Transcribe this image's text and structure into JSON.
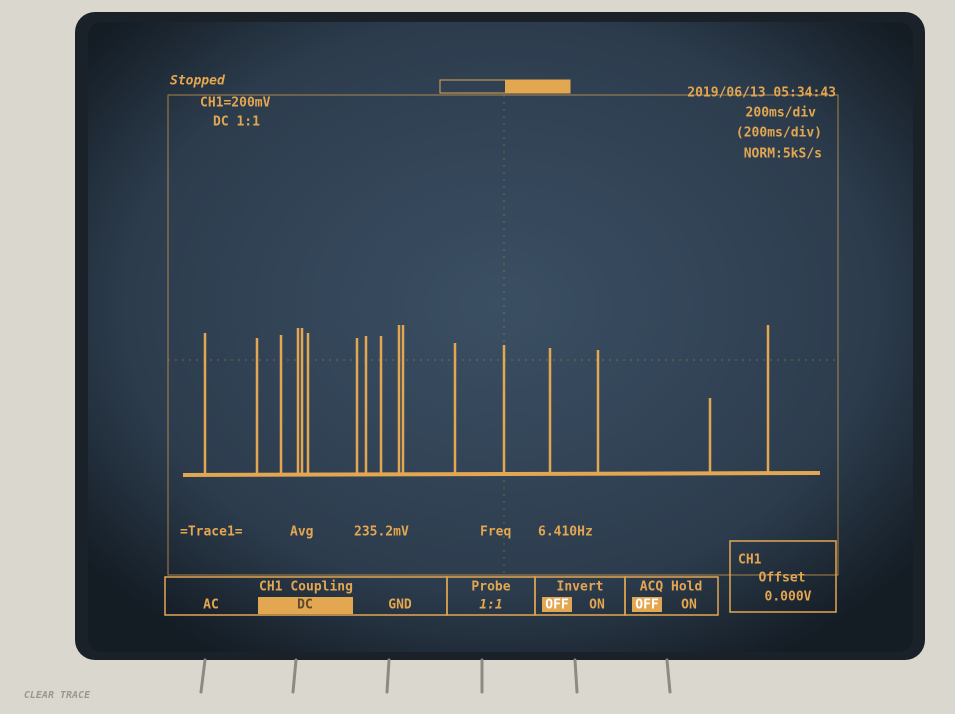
{
  "header": {
    "status": "Stopped",
    "channel": "CH1=200mV",
    "coupling": "DC 1:1",
    "timestamp": "2019/06/13 05:34:43",
    "timebase": "200ms/div",
    "timebase_window": "(200ms/div)",
    "sample_rate": "NORM:5kS/s"
  },
  "measurement": {
    "trace": "=Trace1=",
    "avg_label": "Avg",
    "avg_value": "235.2mV",
    "freq_label": "Freq",
    "freq_value": "6.410Hz"
  },
  "menu": {
    "coupling": {
      "title": "CH1 Coupling",
      "options": [
        "AC",
        "DC",
        "GND"
      ]
    },
    "probe": {
      "title": "Probe",
      "value": "1:1"
    },
    "invert": {
      "title": "Invert",
      "options": [
        "OFF",
        "ON"
      ]
    },
    "acq_hold": {
      "title": "ACQ Hold",
      "options": [
        "OFF",
        "ON"
      ]
    },
    "offset": {
      "channel": "CH1",
      "title": "Offset",
      "value": "0.000V"
    }
  },
  "bezel": {
    "button": "CLEAR TRACE"
  }
}
